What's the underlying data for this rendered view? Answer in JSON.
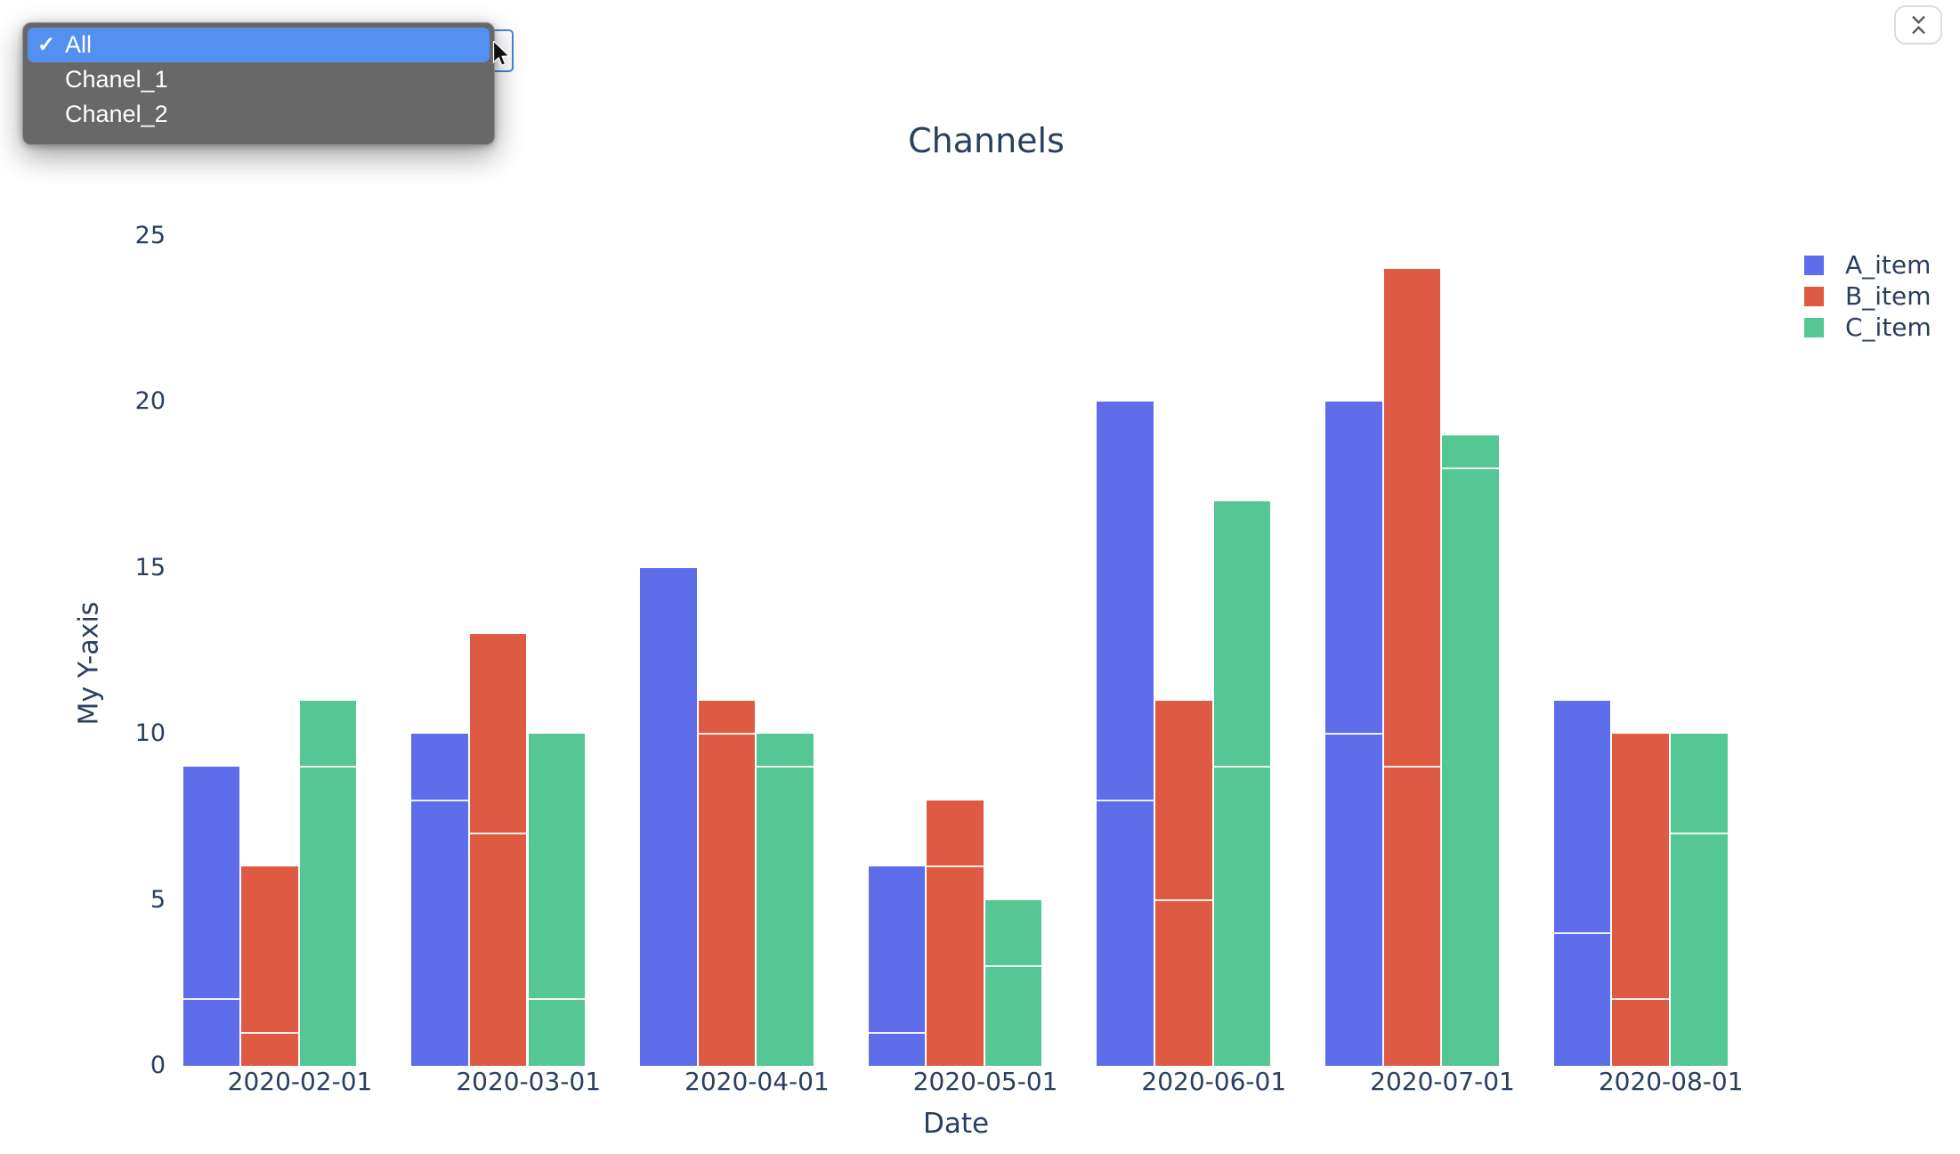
{
  "dropdown": {
    "checkmark_glyph": "✓",
    "options": [
      {
        "label": "All",
        "selected": true
      },
      {
        "label": "Chanel_1",
        "selected": false
      },
      {
        "label": "Chanel_2",
        "selected": false
      }
    ]
  },
  "collapse_button": {
    "icon": "collapse-vertical-icon"
  },
  "chart_data": {
    "type": "bar",
    "barmode": "grouped-stacked",
    "title": "Channels",
    "xlabel": "Date",
    "ylabel": "My Y-axis",
    "grid": false,
    "legend_position": "top-right",
    "text_color": "#2a3f5f",
    "segment_divider_color": "#ffffff",
    "ylim": [
      0,
      25
    ],
    "yticks": [
      0,
      5,
      10,
      15,
      20,
      25
    ],
    "categories": [
      "2020-02-01",
      "2020-03-01",
      "2020-04-01",
      "2020-05-01",
      "2020-06-01",
      "2020-07-01",
      "2020-08-01"
    ],
    "series": [
      {
        "name": "A_item",
        "color": "#5e6dea",
        "totals": [
          9,
          10,
          15,
          6,
          20,
          20,
          11
        ],
        "stack_segments": [
          [
            2,
            7
          ],
          [
            8,
            2
          ],
          [
            15,
            0
          ],
          [
            1,
            5
          ],
          [
            8,
            12
          ],
          [
            10,
            10
          ],
          [
            4,
            7
          ]
        ]
      },
      {
        "name": "B_item",
        "color": "#df5a42",
        "totals": [
          6,
          13,
          11,
          8,
          11,
          24,
          10
        ],
        "stack_segments": [
          [
            1,
            5
          ],
          [
            7,
            6
          ],
          [
            10,
            1
          ],
          [
            6,
            2
          ],
          [
            5,
            6
          ],
          [
            9,
            15
          ],
          [
            2,
            8
          ]
        ]
      },
      {
        "name": "C_item",
        "color": "#55c794",
        "totals": [
          11,
          10,
          10,
          5,
          17,
          19,
          10
        ],
        "stack_segments": [
          [
            9,
            2
          ],
          [
            2,
            8
          ],
          [
            9,
            1
          ],
          [
            3,
            2
          ],
          [
            9,
            8
          ],
          [
            18,
            1
          ],
          [
            7,
            3
          ]
        ]
      }
    ]
  }
}
